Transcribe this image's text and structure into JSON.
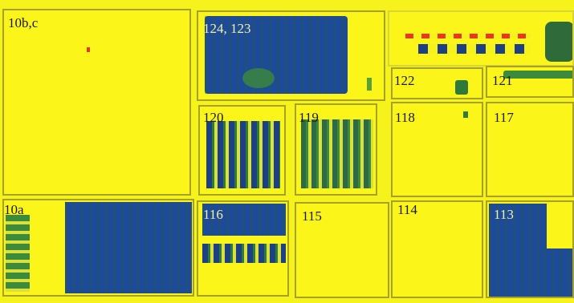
{
  "plots": {
    "p10bc": "10b,c",
    "p124_123": "124, 123",
    "p122": "122",
    "p121": "121",
    "p120": "120",
    "p119": "119",
    "p118": "118",
    "p117": "117",
    "p10a": "10a",
    "p116": "116",
    "p115": "115",
    "p114": "114",
    "p113": "113"
  },
  "colors": {
    "background": "#f6f21c",
    "dense_vegetation": "#1d4a9a",
    "moderate_vegetation": "#2f7a3a",
    "boundary": "#a6a12a"
  }
}
